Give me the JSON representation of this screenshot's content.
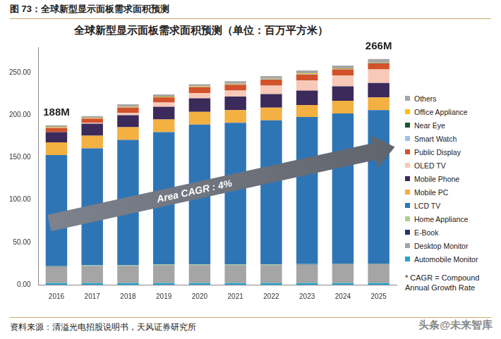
{
  "header": "图 73：全球新型显示面板需求面积预测",
  "chart_data": {
    "type": "bar",
    "title": "全球新型显示面板需求面积预测（单位：百万平方米）",
    "categories": [
      "2016",
      "2017",
      "2018",
      "2019",
      "2020",
      "2021",
      "2022",
      "2023",
      "2024",
      "2025"
    ],
    "series": [
      {
        "name": "Automobile Monitor",
        "color": "#2aa3c9",
        "values": [
          2,
          2,
          2,
          2,
          2,
          2,
          2,
          2,
          2,
          2
        ]
      },
      {
        "name": "Desktop Monitor",
        "color": "#a5a5a5",
        "values": [
          19,
          20,
          20,
          21,
          21,
          21,
          21,
          21.5,
          22,
          22
        ]
      },
      {
        "name": "E-Book",
        "color": "#1f3864",
        "values": [
          0.3,
          0.3,
          0.3,
          0.3,
          0.3,
          0.3,
          0.3,
          0.3,
          0.3,
          0.3
        ]
      },
      {
        "name": "Home Appliance",
        "color": "#a9d18e",
        "values": [
          0.5,
          0.5,
          0.5,
          0.5,
          0.5,
          0.5,
          0.5,
          0.5,
          0.5,
          0.5
        ]
      },
      {
        "name": "LCD TV",
        "color": "#2e75b6",
        "values": [
          131,
          138,
          148,
          156,
          165,
          167,
          170,
          173.5,
          177,
          181
        ]
      },
      {
        "name": "Mobile PC",
        "color": "#f4b041",
        "values": [
          15,
          15,
          15,
          15,
          15,
          15,
          15,
          14,
          15,
          15
        ]
      },
      {
        "name": "Mobile Phone",
        "color": "#3b2a5a",
        "values": [
          12,
          14,
          14,
          15,
          16,
          16,
          16,
          17,
          17,
          17
        ]
      },
      {
        "name": "OLED TV",
        "color": "#f8c9b8",
        "values": [
          0,
          1,
          3,
          5,
          6,
          7,
          10,
          12,
          13,
          16
        ]
      },
      {
        "name": "Public Display",
        "color": "#d2532b",
        "values": [
          5,
          5,
          6,
          6,
          7,
          7,
          7,
          7,
          7,
          7
        ]
      },
      {
        "name": "Smart Watch",
        "color": "#9dc3e6",
        "values": [
          0.2,
          0.2,
          0.3,
          0.3,
          0.3,
          0.3,
          0.3,
          0.4,
          0.4,
          0.4
        ]
      },
      {
        "name": "Near Eye",
        "color": "#1e5631",
        "values": [
          0.1,
          0.1,
          0.2,
          0.2,
          0.2,
          0.3,
          0.3,
          0.3,
          0.3,
          0.3
        ]
      },
      {
        "name": "Office Appliance",
        "color": "#ffc000",
        "values": [
          0.5,
          0.5,
          0.5,
          0.5,
          0.5,
          0.5,
          0.5,
          0.5,
          0.5,
          0.5
        ]
      },
      {
        "name": "Others",
        "color": "#a6a6a6",
        "values": [
          2.4,
          2.2,
          3,
          2.5,
          2.5,
          3,
          3,
          3.5,
          3.5,
          4
        ]
      }
    ],
    "ylim": [
      0,
      280
    ],
    "yticks": [
      {
        "value": 0,
        "label": "0.00"
      },
      {
        "value": 50,
        "label": "50.00"
      },
      {
        "value": 100,
        "label": "100.00"
      },
      {
        "value": 150,
        "label": "150.00"
      },
      {
        "value": 200,
        "label": "200.00"
      },
      {
        "value": 250,
        "label": "250.00"
      }
    ],
    "stacked": true,
    "grid": false,
    "legend": "right",
    "annotations": [
      {
        "text": "188M",
        "category": "2016",
        "value": 188
      },
      {
        "text": "266M",
        "category": "2025",
        "value": 266
      },
      {
        "text": "Area CAGR : 4%"
      }
    ],
    "note": "* CAGR = Compound Annual Growth Rate"
  },
  "source": "资料来源：清溢光电招股说明书，天风证券研究所",
  "watermark": "头条@未来智库"
}
